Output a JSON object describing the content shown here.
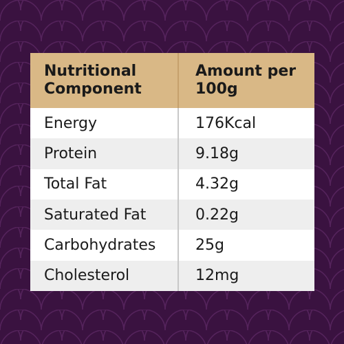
{
  "table": {
    "headers": [
      "Nutritional Component",
      "Amount per 100g"
    ],
    "rows": [
      {
        "component": "Energy",
        "amount": "176Kcal"
      },
      {
        "component": "Protein",
        "amount": "9.18g"
      },
      {
        "component": "Total Fat",
        "amount": "4.32g"
      },
      {
        "component": "Saturated Fat",
        "amount": "0.22g"
      },
      {
        "component": "Carbohydrates",
        "amount": "25g"
      },
      {
        "component": "Cholesterol",
        "amount": "12mg"
      }
    ]
  },
  "colors": {
    "background": "#3a1240",
    "pattern_line": "#55235c",
    "header_fill": "#d9b886",
    "row_alt": "#eeeeee",
    "text": "#1a1a1a"
  }
}
